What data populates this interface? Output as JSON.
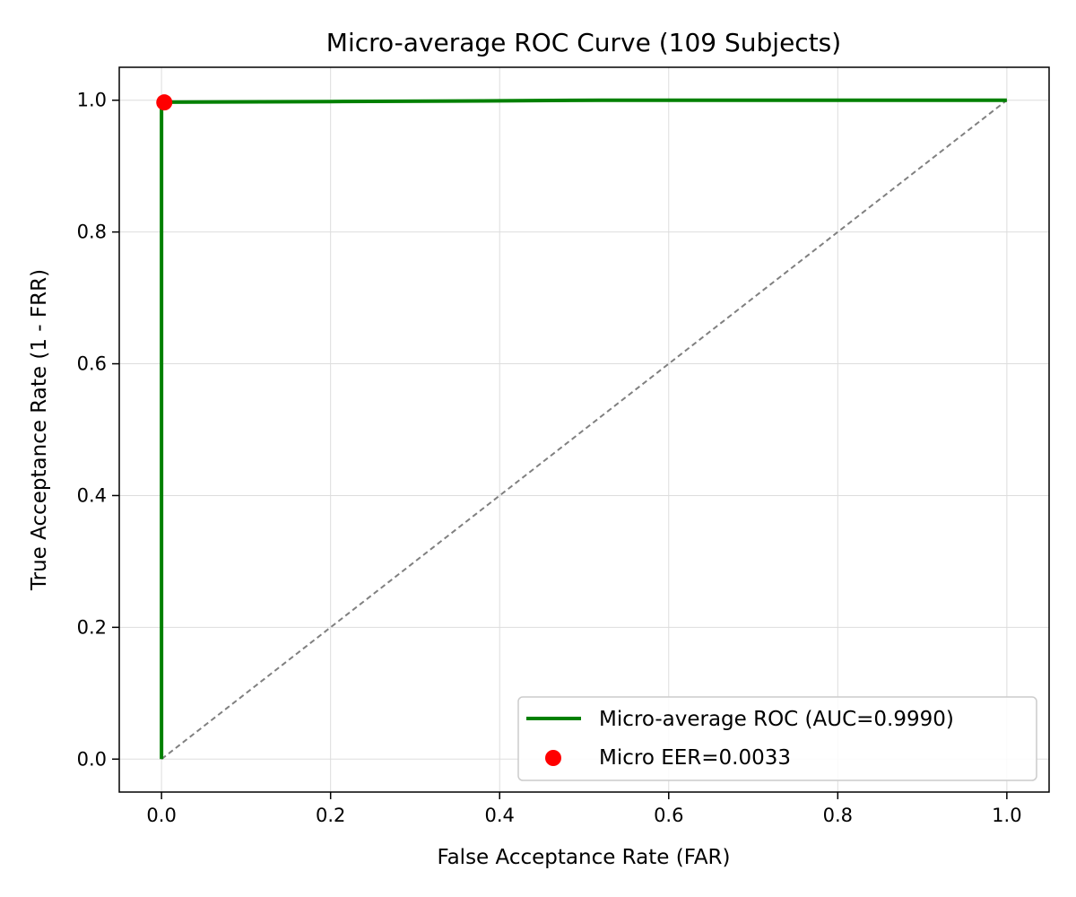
{
  "chart_data": {
    "type": "line",
    "title": "Micro-average ROC Curve (109 Subjects)",
    "xlabel": "False Acceptance Rate (FAR)",
    "ylabel": "True Acceptance Rate (1 - FRR)",
    "xlim": [
      -0.05,
      1.05
    ],
    "ylim": [
      -0.05,
      1.05
    ],
    "xticks": [
      0.0,
      0.2,
      0.4,
      0.6,
      0.8,
      1.0
    ],
    "yticks": [
      0.0,
      0.2,
      0.4,
      0.6,
      0.8,
      1.0
    ],
    "xtick_labels": [
      "0.0",
      "0.2",
      "0.4",
      "0.6",
      "0.8",
      "1.0"
    ],
    "ytick_labels": [
      "0.0",
      "0.2",
      "0.4",
      "0.6",
      "0.8",
      "1.0"
    ],
    "grid": true,
    "legend_position": "lower-right",
    "series": [
      {
        "name": "Micro-average ROC (AUC=0.9990)",
        "kind": "line",
        "color": "#008000",
        "points": [
          [
            0.0,
            0.0
          ],
          [
            0.0,
            0.99
          ],
          [
            0.003,
            0.997
          ],
          [
            0.2,
            0.998
          ],
          [
            0.38,
            0.999
          ],
          [
            0.52,
            1.0
          ],
          [
            1.0,
            1.0
          ]
        ]
      },
      {
        "name": "Micro EER=0.0033",
        "kind": "scatter",
        "color": "#ff0000",
        "points": [
          [
            0.0033,
            0.9967
          ]
        ]
      }
    ],
    "reference_line": {
      "color": "#808080",
      "points": [
        [
          0.0,
          0.0
        ],
        [
          1.0,
          1.0
        ]
      ]
    }
  }
}
